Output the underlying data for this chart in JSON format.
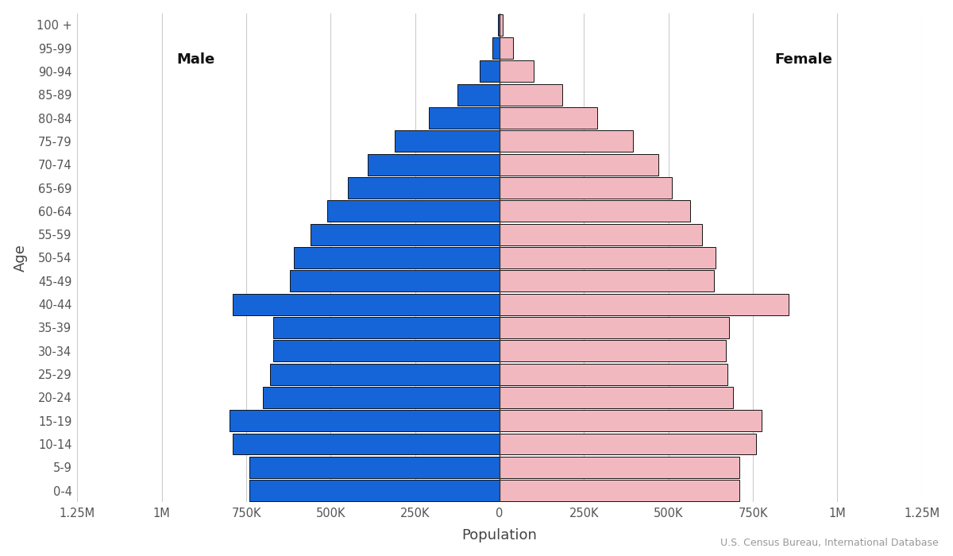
{
  "age_groups": [
    "0-4",
    "5-9",
    "10-14",
    "15-19",
    "20-24",
    "25-29",
    "30-34",
    "35-39",
    "40-44",
    "45-49",
    "50-54",
    "55-59",
    "60-64",
    "65-69",
    "70-74",
    "75-79",
    "80-84",
    "85-89",
    "90-94",
    "95-99",
    "100 +"
  ],
  "male": [
    740000,
    740000,
    790000,
    800000,
    700000,
    680000,
    670000,
    670000,
    790000,
    620000,
    610000,
    560000,
    510000,
    450000,
    390000,
    310000,
    210000,
    125000,
    60000,
    22000,
    5000
  ],
  "female": [
    710000,
    710000,
    760000,
    775000,
    690000,
    675000,
    670000,
    680000,
    855000,
    635000,
    640000,
    600000,
    565000,
    510000,
    470000,
    395000,
    290000,
    185000,
    100000,
    40000,
    10000
  ],
  "male_color": "#1565d8",
  "female_color": "#f2b8c0",
  "edge_color": "#111111",
  "background_color": "#ffffff",
  "xlabel": "Population",
  "ylabel": "Age",
  "xlim": 1250000,
  "tick_values": [
    0,
    250000,
    500000,
    750000,
    1000000,
    1250000
  ],
  "male_label": "Male",
  "female_label": "Female",
  "source_text": "U.S. Census Bureau, International Database",
  "bar_height": 0.92
}
